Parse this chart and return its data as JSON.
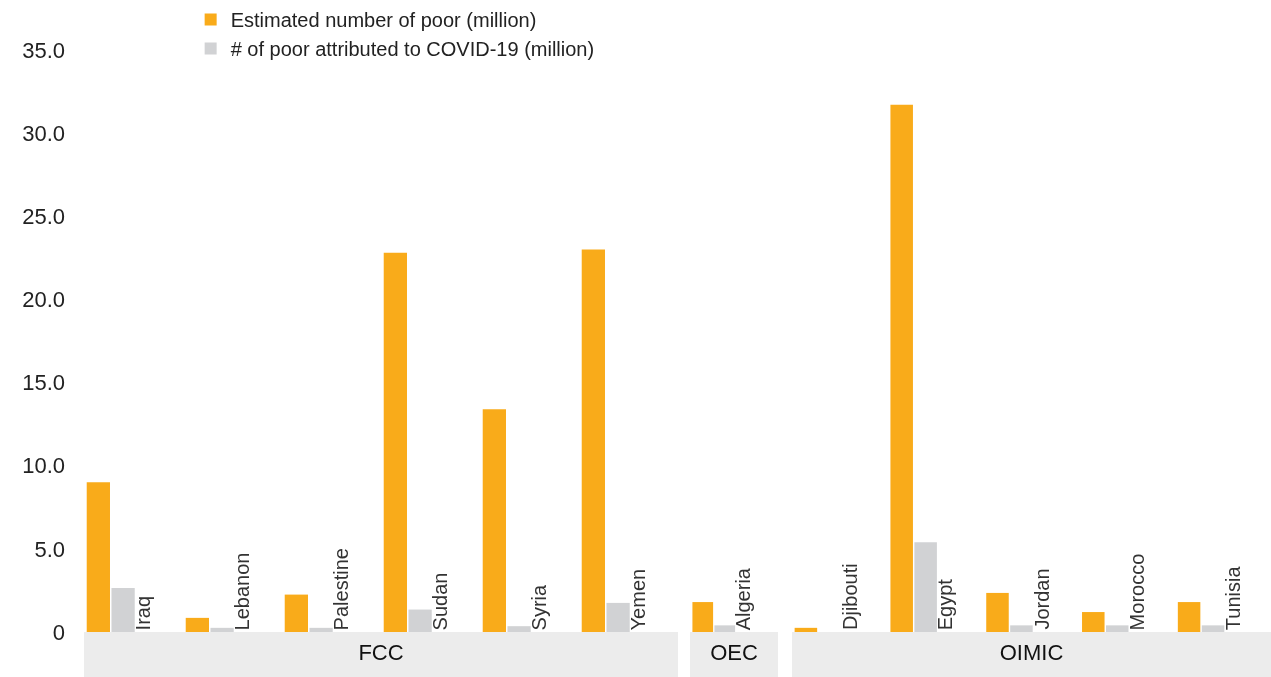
{
  "chart_data": [
    {
      "type": "bar",
      "xlabel": "FCC",
      "categories": [
        "Iraq",
        "Lebanon",
        "Palestine",
        "Sudan",
        "Syria",
        "Yemen"
      ],
      "series": [
        {
          "name": "Estimated number of poor (million)",
          "color": "#f9ab1a",
          "values": [
            9.0,
            0.85,
            2.25,
            22.8,
            13.4,
            23.0
          ]
        },
        {
          "name": "# of poor attributed to COVID-19 (million)",
          "color": "#d1d2d4",
          "values": [
            2.65,
            0.25,
            0.25,
            1.35,
            0.35,
            1.75
          ]
        }
      ],
      "ylim": [
        0,
        35
      ],
      "yticks": [
        0,
        {
          "value": 5,
          "label": "5.0"
        },
        {
          "value": 10,
          "label": "10.0"
        },
        {
          "value": 15,
          "label": "15.0"
        },
        {
          "value": 20,
          "label": "20.0"
        },
        {
          "value": 25,
          "label": "25.0"
        },
        {
          "value": 30,
          "label": "30.0"
        },
        {
          "value": 35,
          "label": "35.0"
        }
      ],
      "legend": "top"
    },
    {
      "type": "bar",
      "xlabel": "OEC",
      "categories": [
        "Algeria"
      ],
      "series": [
        {
          "color": "#f9ab1a",
          "values": [
            1.8
          ]
        },
        {
          "color": "#d1d2d4",
          "values": [
            0.4
          ]
        }
      ],
      "ylim": [
        0,
        35
      ],
      "tick_labels": "x"
    },
    {
      "type": "bar",
      "xlabel": "OIMIC",
      "categories": [
        "Djibouti",
        "Egypt",
        "Jordan",
        "Morocco",
        "Tunisia"
      ],
      "series": [
        {
          "color": "#f9ab1a",
          "values": [
            0.25,
            31.7,
            2.35,
            1.2,
            1.8
          ]
        },
        {
          "color": "#d1d2d4",
          "values": [
            null,
            5.4,
            0.4,
            0.4,
            0.4
          ]
        }
      ],
      "ylim": [
        0,
        35
      ],
      "tick_labels": "x"
    }
  ]
}
